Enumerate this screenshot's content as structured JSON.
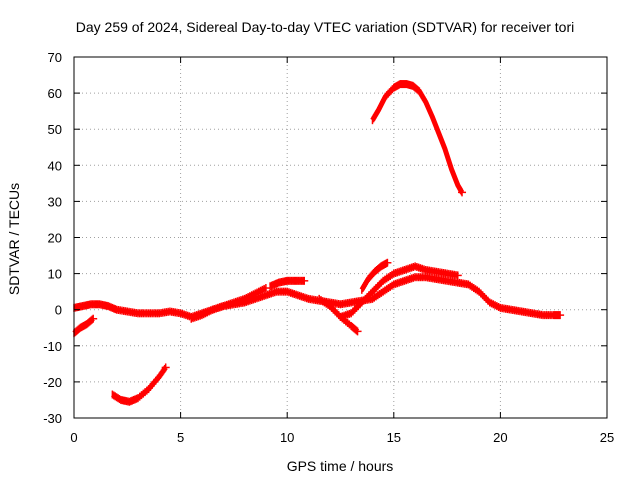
{
  "chart_data": {
    "type": "line",
    "title": "Day 259 of 2024, Sidereal Day-to-day VTEC variation (SDTVAR) for receiver tori",
    "xlabel": "GPS time / hours",
    "ylabel": "SDTVAR / TECUs",
    "xlim": [
      0,
      25
    ],
    "ylim": [
      -30,
      70
    ],
    "xticks": [
      0,
      5,
      10,
      15,
      20,
      25
    ],
    "yticks": [
      -30,
      -20,
      -10,
      0,
      10,
      20,
      30,
      40,
      50,
      60,
      70
    ],
    "grid": true,
    "color": "#ff0000",
    "series": [
      {
        "name": "s1",
        "x": [
          0.0,
          0.3,
          0.6,
          0.9
        ],
        "y": [
          -6.5,
          -5.0,
          -4.0,
          -2.5
        ]
      },
      {
        "name": "s2",
        "x": [
          0.0,
          0.4,
          0.8,
          1.2,
          1.6,
          2.0,
          2.5,
          3.0,
          3.5,
          4.0,
          4.5,
          5.0,
          5.5,
          6.0,
          6.5,
          7.0,
          7.5,
          8.0,
          8.5,
          9.0,
          9.5,
          10.0,
          10.5,
          11.0,
          11.5,
          12.0,
          12.5,
          13.0,
          13.5,
          14.0,
          14.5,
          15.0,
          15.5,
          16.0,
          16.5,
          17.0,
          17.5,
          18.0,
          18.5,
          19.0,
          19.5,
          20.0,
          20.5,
          21.0,
          21.5,
          22.0,
          22.5,
          22.8
        ],
        "y": [
          0.5,
          1.0,
          1.5,
          1.5,
          1.0,
          0.0,
          -0.5,
          -1.0,
          -1.0,
          -1.0,
          -0.5,
          -1.0,
          -2.0,
          -1.0,
          0.0,
          1.0,
          1.5,
          2.0,
          3.0,
          4.0,
          5.0,
          5.0,
          4.0,
          3.0,
          2.5,
          2.0,
          1.5,
          2.0,
          2.5,
          3.0,
          5.0,
          7.0,
          8.0,
          9.0,
          9.0,
          8.5,
          8.0,
          7.5,
          7.0,
          5.0,
          2.0,
          0.5,
          0.0,
          -0.5,
          -1.0,
          -1.5,
          -1.5,
          -1.5
        ]
      },
      {
        "name": "s3",
        "x": [
          1.8,
          2.2,
          2.6,
          3.0,
          3.5,
          4.0,
          4.3
        ],
        "y": [
          -23.5,
          -25.0,
          -25.5,
          -24.5,
          -22.0,
          -18.5,
          -16.0
        ]
      },
      {
        "name": "s4",
        "x": [
          5.5,
          6.0,
          6.5,
          7.0,
          7.5,
          8.0,
          8.5,
          9.0
        ],
        "y": [
          -2.5,
          -1.5,
          0.0,
          1.0,
          2.0,
          3.0,
          4.5,
          6.0
        ]
      },
      {
        "name": "s5",
        "x": [
          9.2,
          9.6,
          10.0,
          10.4,
          10.8
        ],
        "y": [
          6.5,
          7.5,
          8.0,
          8.0,
          8.0
        ]
      },
      {
        "name": "s6",
        "x": [
          11.5,
          12.0,
          12.5,
          13.0,
          13.3
        ],
        "y": [
          3.0,
          1.0,
          -2.0,
          -4.5,
          -6.0
        ]
      },
      {
        "name": "s7",
        "x": [
          12.5,
          13.0,
          13.5,
          14.0,
          14.5,
          15.0,
          15.5,
          16.0,
          16.5,
          17.0,
          17.5,
          18.0
        ],
        "y": [
          -2.0,
          -1.0,
          2.0,
          5.0,
          8.0,
          10.0,
          11.0,
          12.0,
          11.0,
          10.5,
          10.0,
          9.5
        ]
      },
      {
        "name": "s8",
        "x": [
          13.5,
          13.8,
          14.1,
          14.4,
          14.7
        ],
        "y": [
          5.5,
          8.5,
          10.5,
          12.0,
          13.0
        ]
      },
      {
        "name": "s9",
        "x": [
          14.0,
          14.3,
          14.6,
          15.0,
          15.3,
          15.6,
          15.9,
          16.2,
          16.5,
          16.8,
          17.1,
          17.4,
          17.7,
          18.0,
          18.2
        ],
        "y": [
          52.5,
          55.5,
          59.0,
          61.5,
          62.5,
          62.5,
          62.0,
          60.5,
          57.5,
          53.5,
          49.0,
          44.5,
          39.0,
          34.5,
          32.5
        ]
      }
    ]
  }
}
